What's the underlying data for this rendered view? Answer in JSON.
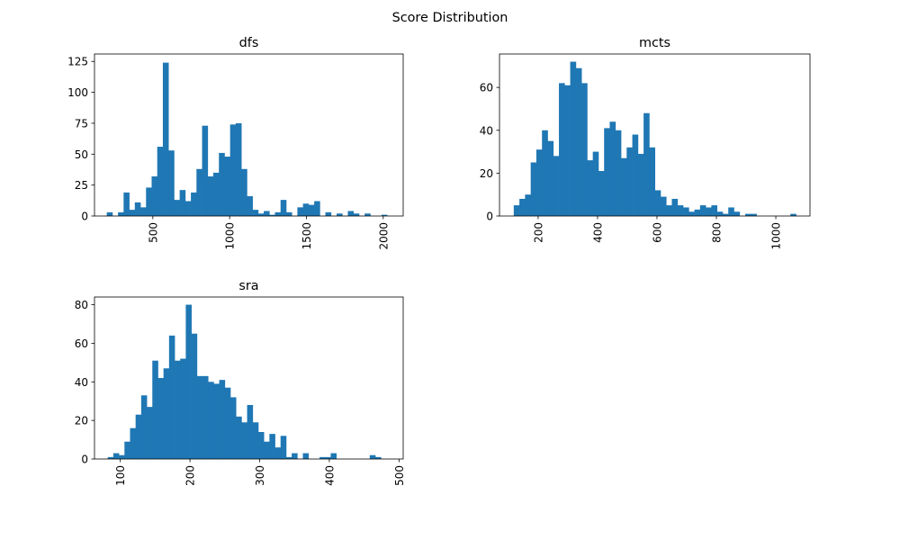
{
  "figure": {
    "title": "Score Distribution"
  },
  "colors": {
    "bar": "#1f77b4"
  },
  "chart_data": [
    {
      "type": "bar",
      "title": "dfs",
      "xlabel": "",
      "ylabel": "",
      "xlim": [
        120,
        2130
      ],
      "ylim": [
        0,
        131
      ],
      "xticks": [
        500,
        1000,
        1500,
        2000
      ],
      "yticks": [
        0,
        25,
        50,
        75,
        100,
        125
      ],
      "grid": false,
      "bin_start": 200,
      "bin_width": 36.5,
      "counts": [
        3,
        0,
        3,
        19,
        5,
        11,
        7,
        23,
        32,
        56,
        124,
        53,
        13,
        21,
        12,
        19,
        38,
        73,
        32,
        35,
        51,
        48,
        74,
        75,
        38,
        16,
        5,
        2,
        4,
        1,
        3,
        13,
        3,
        0,
        7,
        10,
        9,
        12,
        0,
        3,
        0,
        2,
        0,
        4,
        2,
        0,
        2,
        0,
        0,
        1
      ]
    },
    {
      "type": "bar",
      "title": "mcts",
      "xlabel": "",
      "ylabel": "",
      "xlim": [
        70,
        1115
      ],
      "ylim": [
        0,
        75.6
      ],
      "xticks": [
        200,
        400,
        600,
        800,
        1000
      ],
      "yticks": [
        0,
        20,
        40,
        60
      ],
      "grid": false,
      "bin_start": 118,
      "bin_width": 19.0,
      "counts": [
        5,
        8,
        10,
        25,
        31,
        40,
        35,
        28,
        62,
        61,
        72,
        69,
        62,
        26,
        30,
        21,
        41,
        44,
        40,
        27,
        32,
        38,
        29,
        48,
        32,
        12,
        9,
        5,
        8,
        5,
        4,
        2,
        3,
        5,
        4,
        5,
        2,
        1,
        4,
        2,
        0,
        1,
        1,
        0,
        0,
        0,
        0,
        0,
        0,
        1
      ]
    },
    {
      "type": "bar",
      "title": "sra",
      "xlabel": "",
      "ylabel": "",
      "xlim": [
        63,
        506
      ],
      "ylim": [
        0,
        84
      ],
      "xticks": [
        100,
        200,
        300,
        400,
        500
      ],
      "yticks": [
        0,
        20,
        40,
        60,
        80
      ],
      "grid": false,
      "bin_start": 82,
      "bin_width": 8.0,
      "counts": [
        1,
        3,
        2,
        9,
        16,
        23,
        33,
        27,
        51,
        42,
        47,
        64,
        51,
        52,
        80,
        65,
        43,
        43,
        40,
        39,
        41,
        37,
        32,
        22,
        19,
        28,
        19,
        14,
        9,
        13,
        6,
        12,
        1,
        3,
        0,
        3,
        0,
        0,
        1,
        1,
        3,
        0,
        0,
        0,
        0,
        0,
        0,
        2,
        1,
        0
      ]
    }
  ]
}
